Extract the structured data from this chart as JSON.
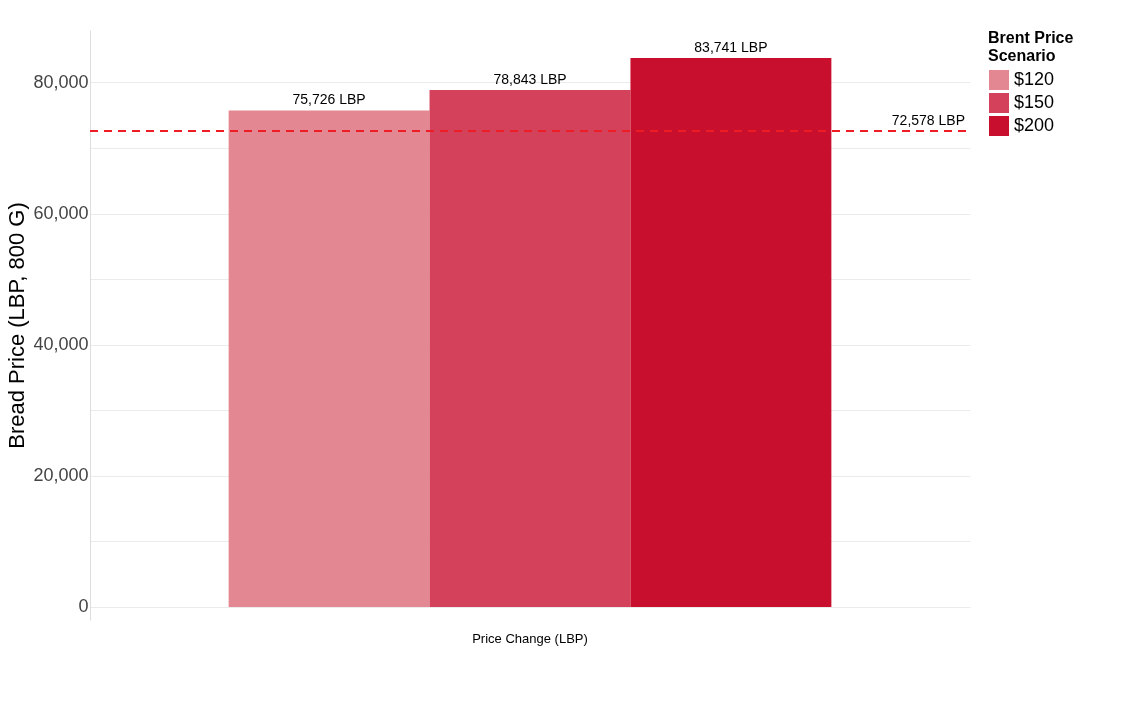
{
  "chart_data": {
    "type": "bar",
    "ylabel": "Bread Price (LBP, 800 G)",
    "legend_title": "Brent Price Scenario",
    "categories": [
      "Price Change (LBP)"
    ],
    "series": [
      {
        "name": "$120",
        "color": "#e38893",
        "values": [
          75726
        ],
        "value_labels": [
          "75,726 LBP"
        ]
      },
      {
        "name": "$150",
        "color": "#d4415a",
        "values": [
          78843
        ],
        "value_labels": [
          "78,843 LBP"
        ]
      },
      {
        "name": "$200",
        "color": "#c8102e",
        "values": [
          83741
        ],
        "value_labels": [
          "83,741 LBP"
        ]
      }
    ],
    "yticks": [
      0,
      {
        "value": 10000,
        "label": null
      },
      {
        "value": 20000,
        "label": "20,000"
      },
      {
        "value": 30000,
        "label": null
      },
      {
        "value": 40000,
        "label": "40,000"
      },
      {
        "value": 50000,
        "label": null
      },
      {
        "value": 60000,
        "label": "60,000"
      },
      {
        "value": 70000,
        "label": null
      },
      {
        "value": 80000,
        "label": "80,000"
      }
    ],
    "ylim": [
      -2000,
      88000
    ],
    "ref_lines": [
      {
        "axis": "y",
        "value": 72578,
        "label": "72,578 LBP",
        "color": "#ee1c25",
        "line_style": "dashed"
      }
    ],
    "grid": "y",
    "legend": "right"
  }
}
